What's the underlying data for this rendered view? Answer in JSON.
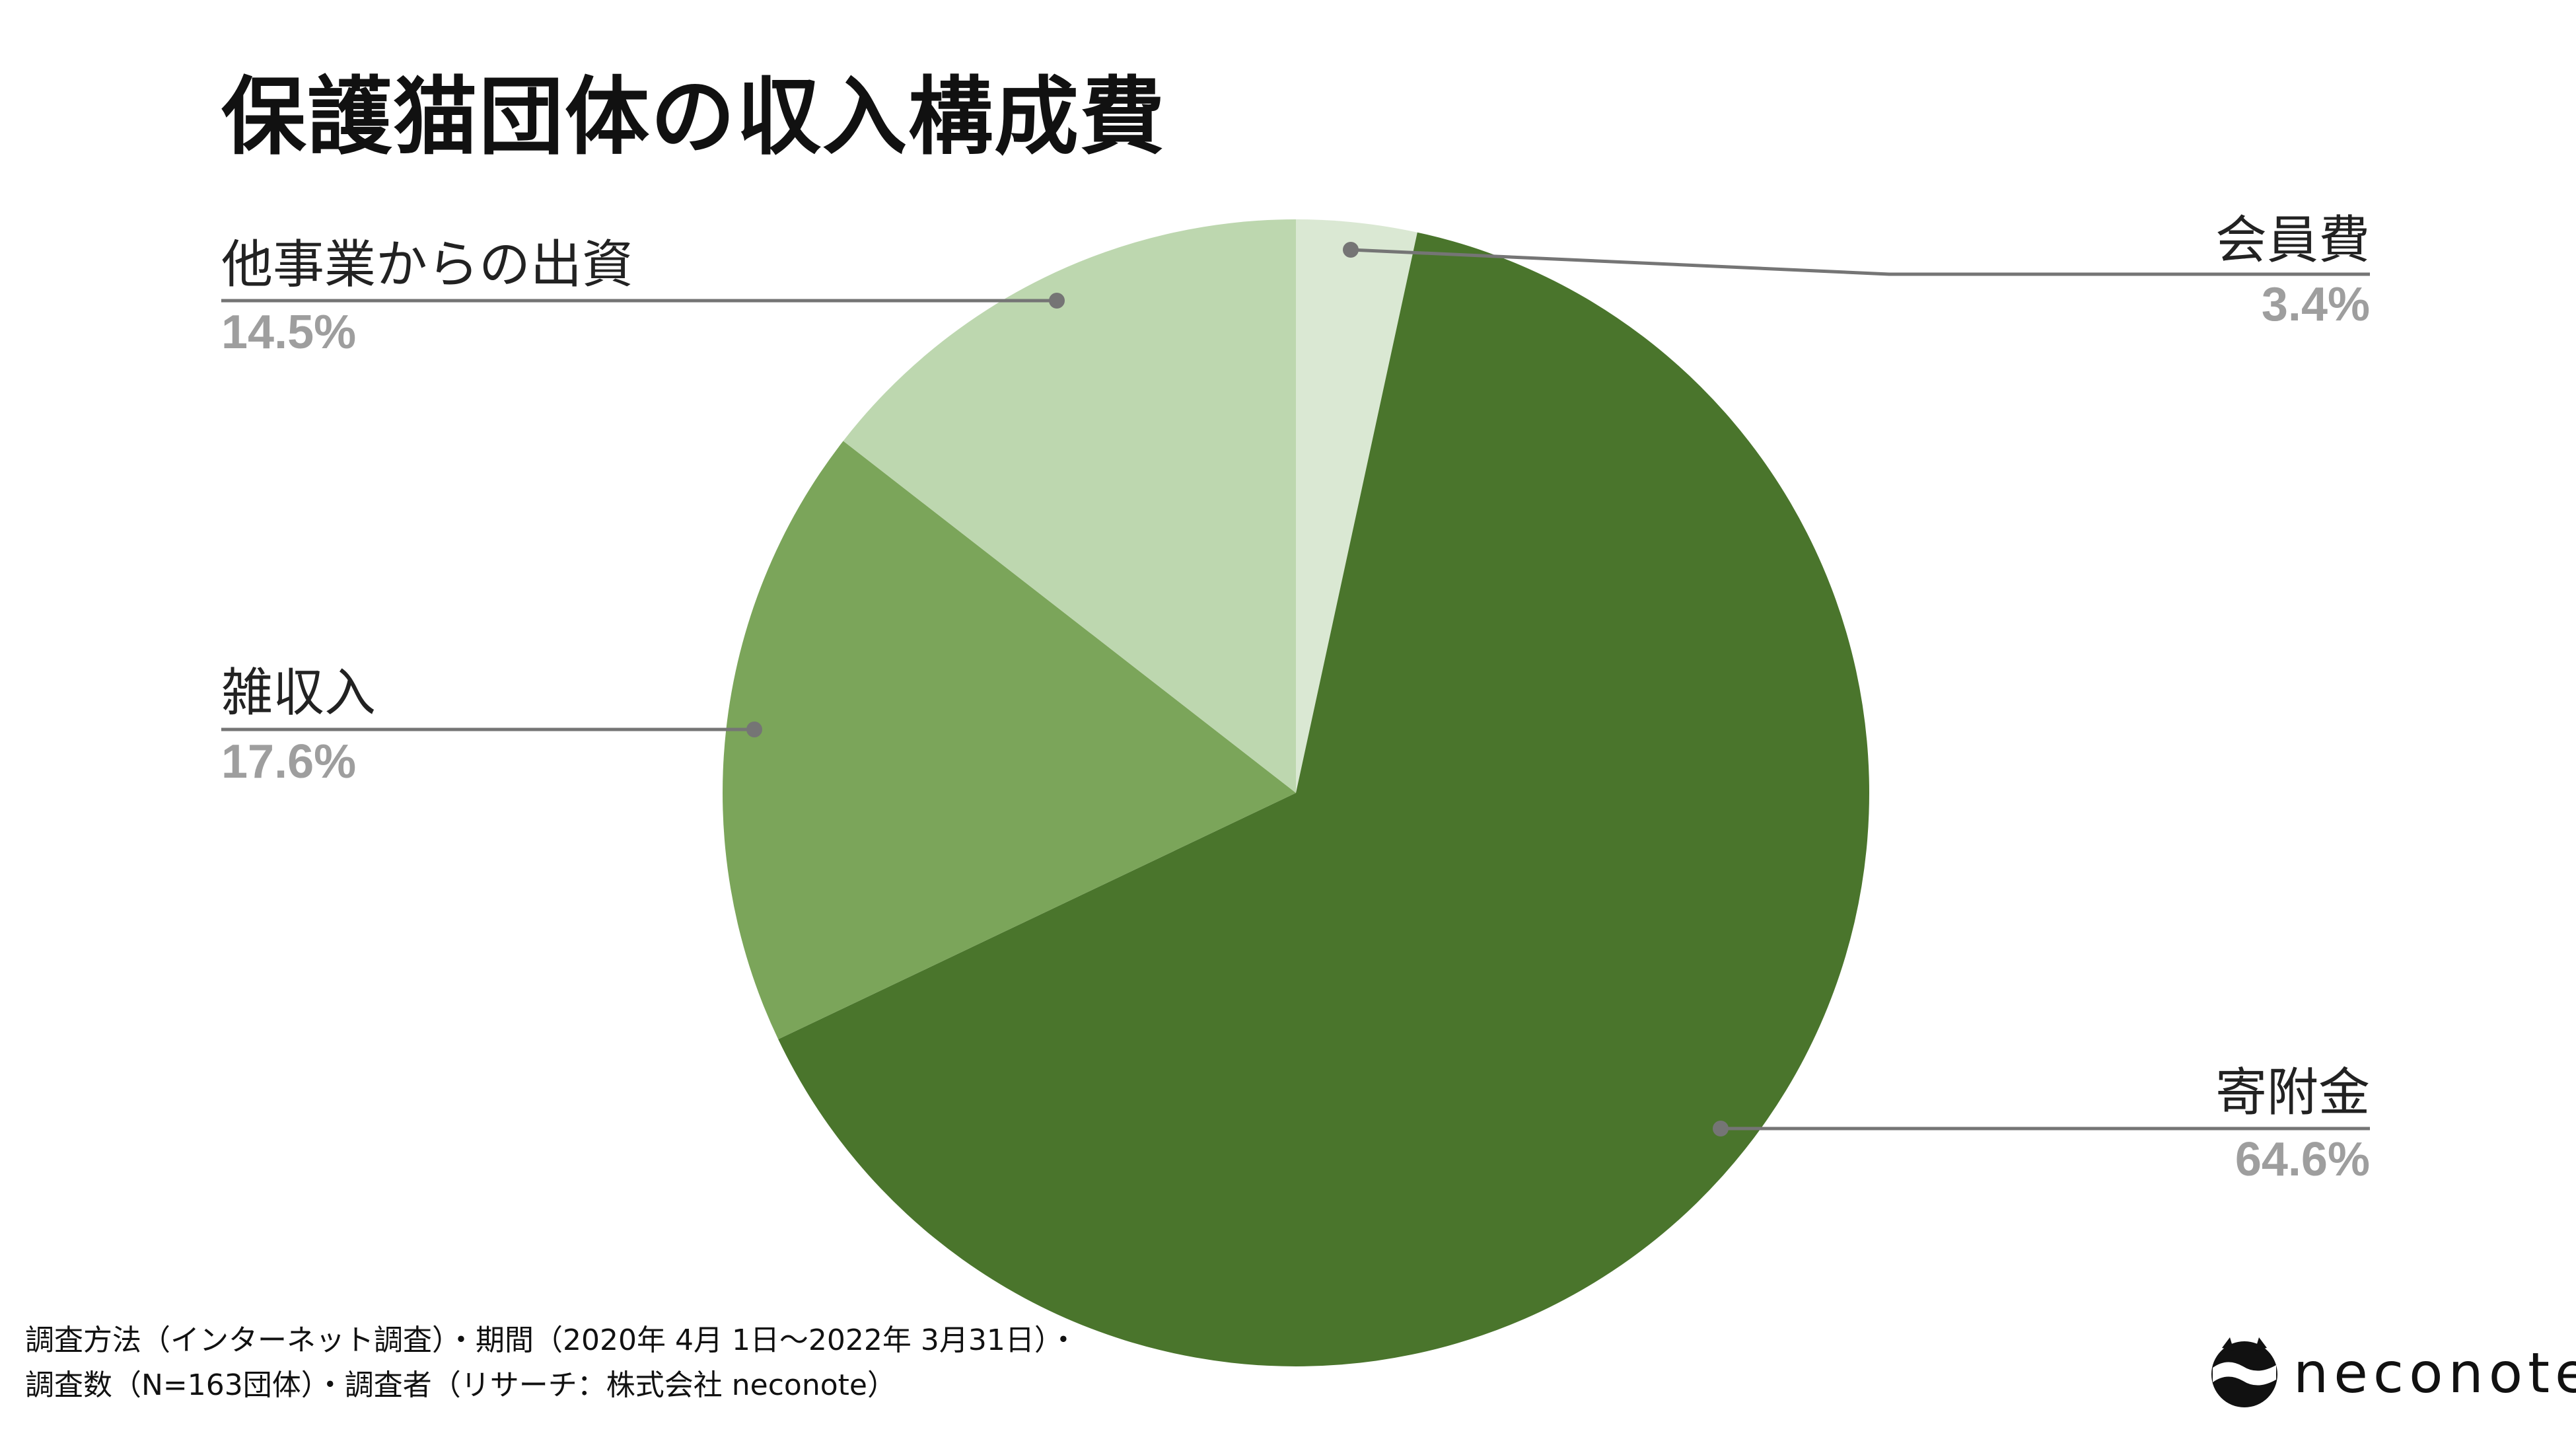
{
  "chart_data": {
    "type": "pie",
    "title": "保護猫団体の収入構成費",
    "slices": [
      {
        "label": "会員費",
        "value": 3.4,
        "value_label": "3.4%",
        "color": "#dae8d3"
      },
      {
        "label": "寄附金",
        "value": 64.6,
        "value_label": "64.6%",
        "color": "#4a752c"
      },
      {
        "label": "雑収入",
        "value": 17.6,
        "value_label": "17.6%",
        "color": "#7ba55a"
      },
      {
        "label": "他事業からの出資",
        "value": 14.5,
        "value_label": "14.5%",
        "color": "#bdd7af"
      }
    ],
    "start_angle_deg": 0,
    "direction": "clockwise",
    "legend": "none"
  },
  "footnote": {
    "line1": "調査方法（インターネット調査）・期間（2020年 4月 1日〜2022年 3月31日）・",
    "line2": "調査数（N=163団体）・調査者（リサーチ：株式会社 neconote）"
  },
  "logo": {
    "text": "neconote"
  },
  "colors": {
    "leader": "#757575",
    "value_text": "#9e9e9e",
    "label_text": "#222222"
  }
}
